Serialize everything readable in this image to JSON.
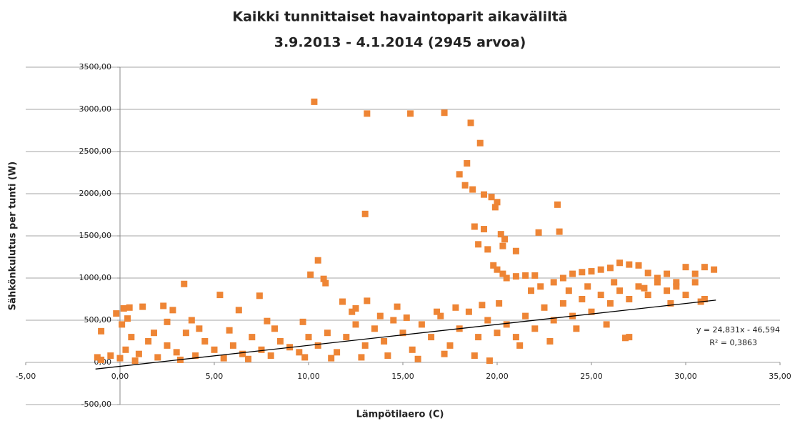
{
  "chart_data": {
    "type": "scatter",
    "title": "Kaikki tunnittaiset havaintoparit aikaväliltä",
    "subtitle": "3.9.2013  - 4.1.2014  (2945 arvoa)",
    "x_label": "Lämpötilaero (C)",
    "y_label": "Sähkönkulutus per tunti (W)",
    "xlim": [
      -5,
      35
    ],
    "ylim": [
      -500,
      3500
    ],
    "xticks": [
      {
        "value": -5,
        "label": "-5,00"
      },
      {
        "value": 0,
        "label": "0,00"
      },
      {
        "value": 5,
        "label": "5,00"
      },
      {
        "value": 10,
        "label": "10,00"
      },
      {
        "value": 15,
        "label": "15,00"
      },
      {
        "value": 20,
        "label": "20,00"
      },
      {
        "value": 25,
        "label": "25,00"
      },
      {
        "value": 30,
        "label": "30,00"
      },
      {
        "value": 35,
        "label": "35,00"
      }
    ],
    "yticks": [
      {
        "value": -500,
        "label": "-500,00"
      },
      {
        "value": 0,
        "label": "0,00"
      },
      {
        "value": 500,
        "label": "500,00"
      },
      {
        "value": 1000,
        "label": "1000,00"
      },
      {
        "value": 1500,
        "label": "1500,00"
      },
      {
        "value": 2000,
        "label": "2000,00"
      },
      {
        "value": 2500,
        "label": "2500,00"
      },
      {
        "value": 3000,
        "label": "3000,00"
      },
      {
        "value": 3500,
        "label": "3500,00"
      }
    ],
    "grid": true,
    "series": [
      {
        "color": "#ee8535",
        "x": [
          10.3,
          13.1,
          15.4,
          17.2,
          18.6,
          19.1,
          18.4,
          18.0,
          18.3,
          18.7,
          19.3,
          19.7,
          20.0,
          19.9,
          13.0,
          23.2,
          18.8,
          19.3,
          20.2,
          20.4,
          19.0,
          20.3,
          19.5,
          21.0,
          22.2,
          23.3,
          10.5,
          10.1,
          10.8,
          10.9,
          3.4,
          5.3,
          7.4,
          13.1,
          11.8,
          6.3,
          0.5,
          0.2,
          1.2,
          2.3,
          2.8,
          -0.2,
          12.5,
          9.7,
          -1,
          -0.5,
          0,
          0.3,
          0.6,
          1,
          1.5,
          2,
          2.5,
          3,
          3.5,
          4,
          4.5,
          5,
          5.5,
          6,
          6.5,
          7,
          7.5,
          8,
          8.5,
          9,
          9.5,
          10,
          -1,
          0.1,
          0.4,
          2.5,
          3.8,
          4.2,
          5.8,
          7.8,
          8.2,
          1.8,
          -1.2,
          0.8,
          3.2,
          6.8,
          9.8,
          10.5,
          11,
          11.5,
          12,
          12.5,
          13,
          13.5,
          14,
          14.5,
          15,
          15.5,
          16,
          16.5,
          17,
          17.5,
          18,
          18.5,
          19,
          19.5,
          20,
          11.2,
          12.8,
          14.2,
          15.8,
          17.2,
          18.8,
          19.6,
          13.8,
          15.2,
          16.8,
          17.8,
          19.2,
          20.1,
          12.3,
          14.7,
          20.5,
          21,
          21.5,
          22,
          22.5,
          23,
          23.5,
          24,
          24.5,
          25,
          25.5,
          26,
          26.5,
          27,
          27.5,
          28,
          28.5,
          29,
          29.5,
          30,
          30.5,
          31,
          21.2,
          22.8,
          24.2,
          25.8,
          21.8,
          22.3,
          23.8,
          24.8,
          26.2,
          27.8,
          29.2,
          30.8,
          20.5,
          21,
          21.5,
          22,
          23,
          23.5,
          24,
          24.5,
          25,
          25.5,
          26,
          26.5,
          27,
          27.5,
          28,
          28.5,
          29,
          29.5,
          30,
          30.5,
          31,
          31.5,
          27,
          26.8,
          20,
          20.3,
          19.8
        ],
        "values": [
          3090,
          2950,
          2950,
          2960,
          2840,
          2600,
          2360,
          2230,
          2100,
          2050,
          1990,
          1960,
          1900,
          1840,
          1760,
          1870,
          1610,
          1580,
          1520,
          1460,
          1400,
          1380,
          1340,
          1320,
          1540,
          1550,
          1210,
          1040,
          990,
          940,
          930,
          800,
          790,
          730,
          720,
          620,
          650,
          640,
          660,
          670,
          620,
          580,
          640,
          480,
          30,
          80,
          50,
          150,
          300,
          100,
          250,
          60,
          200,
          120,
          350,
          80,
          250,
          150,
          50,
          200,
          100,
          300,
          150,
          80,
          250,
          180,
          120,
          300,
          370,
          450,
          520,
          480,
          500,
          400,
          380,
          490,
          400,
          350,
          60,
          20,
          30,
          40,
          60,
          200,
          350,
          120,
          300,
          450,
          200,
          400,
          250,
          500,
          350,
          150,
          450,
          300,
          550,
          200,
          400,
          600,
          300,
          500,
          350,
          50,
          60,
          80,
          40,
          100,
          80,
          20,
          550,
          530,
          600,
          650,
          680,
          700,
          600,
          660,
          450,
          300,
          550,
          400,
          650,
          500,
          700,
          550,
          750,
          600,
          800,
          700,
          850,
          750,
          900,
          800,
          950,
          850,
          900,
          800,
          950,
          750,
          200,
          250,
          400,
          450,
          850,
          900,
          850,
          900,
          950,
          880,
          700,
          720,
          1000,
          1020,
          1030,
          1030,
          950,
          1000,
          1050,
          1070,
          1080,
          1100,
          1120,
          1180,
          1160,
          1150,
          1060,
          1000,
          1050,
          950,
          1130,
          1050,
          1130,
          1100,
          300,
          290,
          1100,
          1050,
          1150
        ]
      }
    ],
    "trendline": {
      "slope": 24.831,
      "intercept": -46.594,
      "x": [
        -1.3,
        31.6
      ]
    },
    "annotations": [
      "y = 24,831x - 46,594",
      "R² = 0,3863"
    ]
  }
}
